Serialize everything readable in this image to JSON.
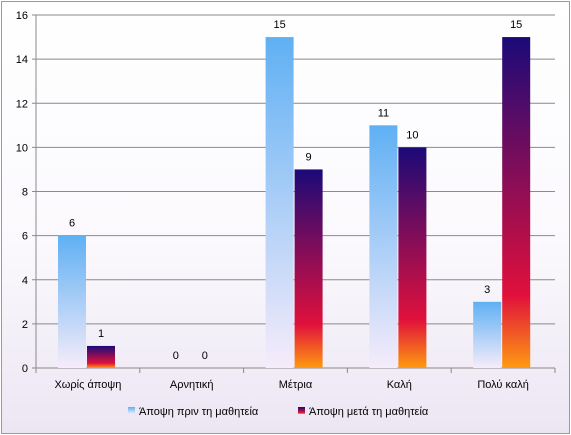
{
  "chart_data": {
    "type": "bar",
    "categories": [
      "Χωρίς άποψη",
      "Αρνητική",
      "Μέτρια",
      "Καλή",
      "Πολύ καλή"
    ],
    "series": [
      {
        "name": "Άποψη πριν τη μαθητεία",
        "values": [
          6,
          0,
          15,
          11,
          3
        ]
      },
      {
        "name": "Άποψη μετά τη μαθητεία",
        "values": [
          1,
          0,
          9,
          10,
          15
        ]
      }
    ],
    "ylim": [
      0,
      16
    ],
    "yticks": [
      0,
      2,
      4,
      6,
      8,
      10,
      12,
      14,
      16
    ],
    "grid": true,
    "legend_position": "bottom",
    "colors": {
      "before_top": "#5fb0f4",
      "before_bottom": "#f6ecfa",
      "after_top": "#1b0a78",
      "after_mid": "#e0103c",
      "after_bottom": "#ff9a10"
    }
  }
}
